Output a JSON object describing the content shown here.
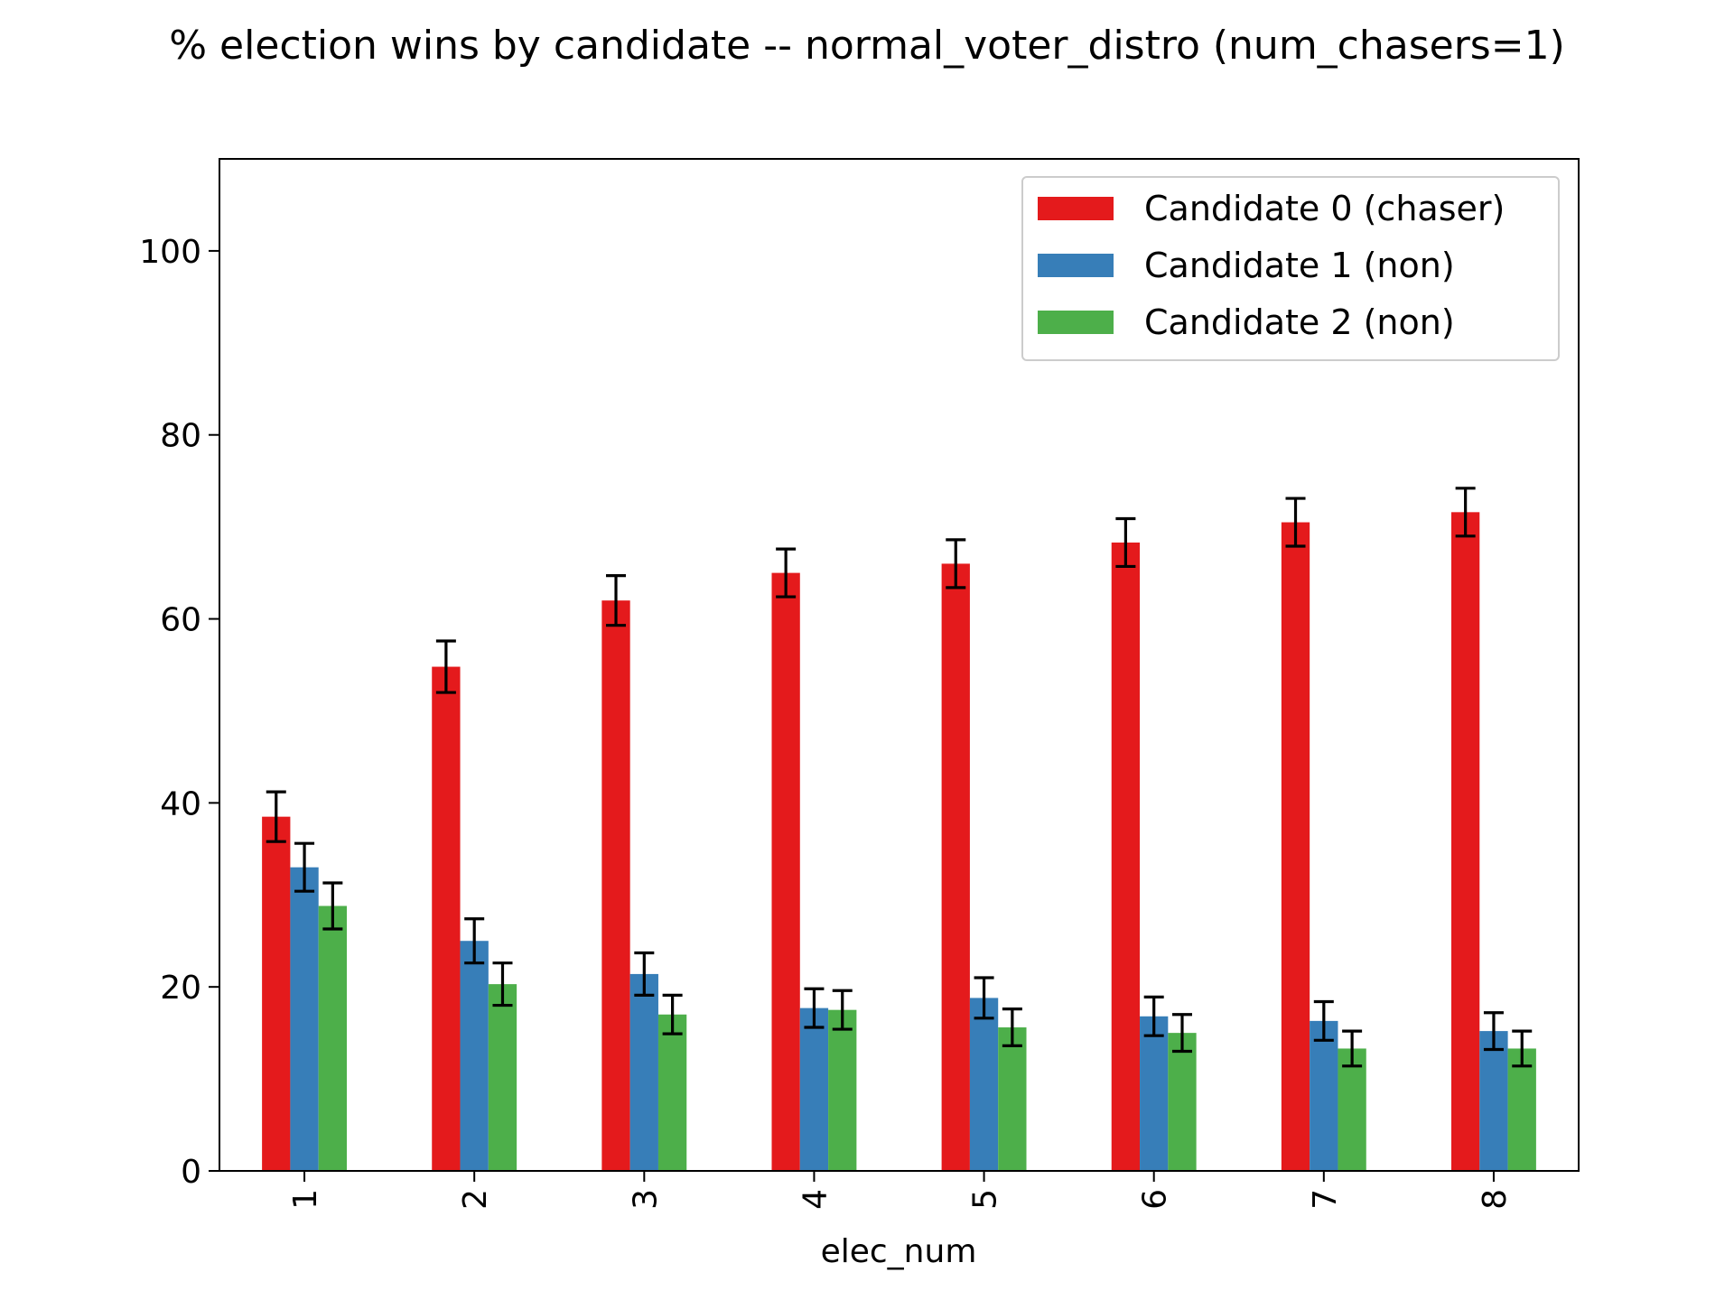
{
  "chart_data": {
    "type": "bar",
    "title": "% election wins by candidate -- normal_voter_distro (num_chasers=1)",
    "xlabel": "elec_num",
    "ylabel": "",
    "categories": [
      "1",
      "2",
      "3",
      "4",
      "5",
      "6",
      "7",
      "8"
    ],
    "ylim": [
      0,
      110
    ],
    "yticks": [
      0,
      20,
      40,
      60,
      80,
      100
    ],
    "grid": false,
    "legend_position": "top-right",
    "series": [
      {
        "name": "Candidate 0 (chaser)",
        "color": "#e41a1c",
        "values": [
          38.5,
          54.8,
          62.0,
          65.0,
          66.0,
          68.3,
          70.5,
          71.6
        ],
        "errors": [
          2.7,
          2.8,
          2.7,
          2.6,
          2.6,
          2.6,
          2.6,
          2.6
        ]
      },
      {
        "name": "Candidate 1 (non)",
        "color": "#377eb8",
        "values": [
          33.0,
          25.0,
          21.4,
          17.7,
          18.8,
          16.8,
          16.3,
          15.2
        ],
        "errors": [
          2.6,
          2.4,
          2.3,
          2.1,
          2.2,
          2.1,
          2.1,
          2.0
        ]
      },
      {
        "name": "Candidate 2 (non)",
        "color": "#4daf4a",
        "values": [
          28.8,
          20.3,
          17.0,
          17.5,
          15.6,
          15.0,
          13.3,
          13.3
        ],
        "errors": [
          2.5,
          2.3,
          2.1,
          2.1,
          2.0,
          2.0,
          1.9,
          1.9
        ]
      }
    ]
  }
}
